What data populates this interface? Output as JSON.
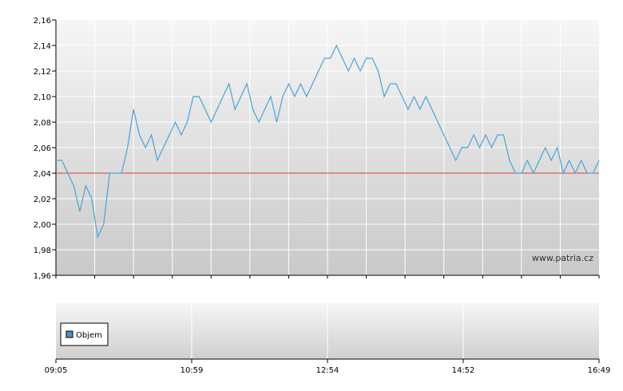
{
  "chart_data": [
    {
      "type": "line",
      "title": "",
      "xlabel": "",
      "ylabel": "",
      "ylim": [
        1.96,
        2.16
      ],
      "yticks": [
        "1,96",
        "1,98",
        "2,00",
        "2,02",
        "2,04",
        "2,06",
        "2,08",
        "2,10",
        "2,12",
        "2,14",
        "2,16"
      ],
      "grid": true,
      "reference_line": {
        "value": 2.04,
        "color": "#e03a3a"
      },
      "watermark": "www.patria.cz",
      "line_color": "#4aa3d8",
      "series": [
        {
          "values": [
            2.05,
            2.05,
            2.04,
            2.03,
            2.01,
            2.03,
            2.02,
            1.99,
            2.0,
            2.04,
            2.04,
            2.04,
            2.06,
            2.09,
            2.07,
            2.06,
            2.07,
            2.05,
            2.06,
            2.07,
            2.08,
            2.07,
            2.08,
            2.1,
            2.1,
            2.09,
            2.08,
            2.09,
            2.1,
            2.11,
            2.09,
            2.1,
            2.11,
            2.09,
            2.08,
            2.09,
            2.1,
            2.08,
            2.1,
            2.11,
            2.1,
            2.11,
            2.1,
            2.11,
            2.12,
            2.13,
            2.13,
            2.14,
            2.13,
            2.12,
            2.13,
            2.12,
            2.13,
            2.13,
            2.12,
            2.1,
            2.11,
            2.11,
            2.1,
            2.09,
            2.1,
            2.09,
            2.1,
            2.09,
            2.08,
            2.07,
            2.06,
            2.05,
            2.06,
            2.06,
            2.07,
            2.06,
            2.07,
            2.06,
            2.07,
            2.07,
            2.05,
            2.04,
            2.04,
            2.05,
            2.04,
            2.05,
            2.06,
            2.05,
            2.06,
            2.04,
            2.05,
            2.04,
            2.05,
            2.04,
            2.04,
            2.05
          ]
        }
      ]
    },
    {
      "type": "bar",
      "title": "",
      "legend": [
        "Objem"
      ],
      "legend_color": "#4a90c8",
      "xlabel": "",
      "ylabel": "",
      "xticks": [
        "09:05",
        "10:59",
        "12:54",
        "14:52",
        "16:49"
      ],
      "series": []
    }
  ]
}
